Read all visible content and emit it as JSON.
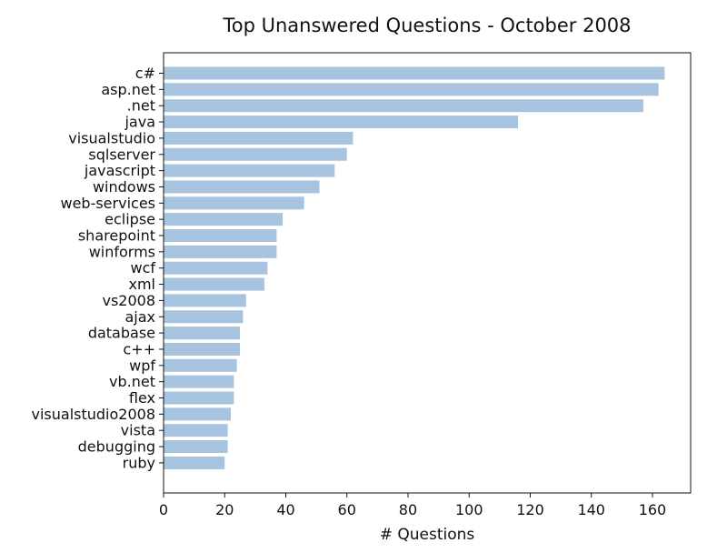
{
  "chart_data": {
    "type": "bar",
    "orientation": "horizontal",
    "title": "Top Unanswered Questions - October 2008",
    "xlabel": "# Questions",
    "ylabel": "",
    "categories": [
      "c#",
      "asp.net",
      ".net",
      "java",
      "visualstudio",
      "sqlserver",
      "javascript",
      "windows",
      "web-services",
      "eclipse",
      "sharepoint",
      "winforms",
      "wcf",
      "xml",
      "vs2008",
      "ajax",
      "database",
      "c++",
      "wpf",
      "vb.net",
      "flex",
      "visualstudio2008",
      "vista",
      "debugging",
      "ruby"
    ],
    "values": [
      164,
      162,
      157,
      116,
      62,
      60,
      56,
      51,
      46,
      39,
      37,
      37,
      34,
      33,
      27,
      26,
      25,
      25,
      24,
      23,
      23,
      22,
      21,
      21,
      20
    ],
    "xlim": [
      0,
      172.5
    ],
    "xticks": [
      "0",
      "20",
      "40",
      "60",
      "80",
      "100",
      "120",
      "140",
      "160"
    ],
    "bar_color": "#a6c4e0",
    "grid": false,
    "legend": "none"
  }
}
